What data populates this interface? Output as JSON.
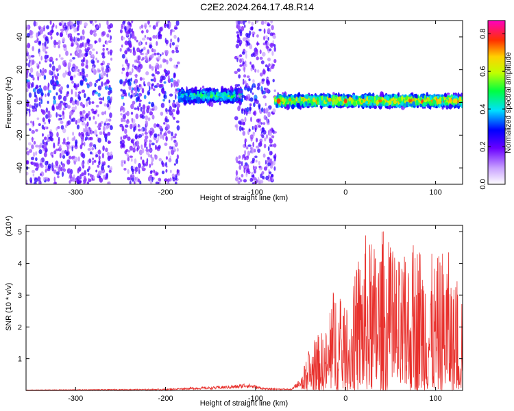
{
  "title": "C2E2.2024.264.17.48.R14",
  "chart_data": [
    {
      "type": "heatmap",
      "xlabel": "Height of straight line (km)",
      "ylabel": "Frequency (Hz)",
      "xlim": [
        -355,
        130
      ],
      "ylim": [
        -50,
        50
      ],
      "xticks": [
        -300,
        -200,
        -100,
        0,
        100
      ],
      "yticks": [
        -40,
        -20,
        0,
        20,
        40
      ],
      "colorbar": {
        "label": "Normalized spectral amplitude",
        "range": [
          0.0,
          0.87
        ],
        "ticks": [
          0.0,
          0.2,
          0.4,
          0.6,
          0.8
        ]
      },
      "bands": [
        {
          "x": [
            -355,
            -260
          ],
          "spread_hz": 50,
          "center_hz": 8,
          "intensity": 0.25
        },
        {
          "x": [
            -250,
            -185
          ],
          "spread_hz": 50,
          "center_hz": 6,
          "intensity": 0.2
        },
        {
          "x": [
            -185,
            -115
          ],
          "spread_hz": 6,
          "center_hz": 4,
          "intensity": 0.45
        },
        {
          "x": [
            -122,
            -78
          ],
          "spread_hz": 50,
          "center_hz": 3,
          "intensity": 0.25
        },
        {
          "x": [
            -78,
            130
          ],
          "spread_hz": 5,
          "center_hz": 1,
          "intensity": 0.7
        }
      ]
    },
    {
      "type": "line",
      "xlabel": "Height of straight line (km)",
      "ylabel": "SNR (10 * v/v)",
      "scale_label": "(x10⁴)",
      "xlim": [
        -355,
        130
      ],
      "ylim": [
        0,
        5.2
      ],
      "xticks": [
        -300,
        -200,
        -100,
        0,
        100
      ],
      "yticks": [
        1,
        2,
        3,
        4,
        5
      ],
      "color": "#e8302c",
      "envelope": [
        {
          "x": -355,
          "y": 0.02
        },
        {
          "x": -250,
          "y": 0.04
        },
        {
          "x": -200,
          "y": 0.05
        },
        {
          "x": -170,
          "y": 0.1
        },
        {
          "x": -150,
          "y": 0.12
        },
        {
          "x": -120,
          "y": 0.18
        },
        {
          "x": -110,
          "y": 0.25
        },
        {
          "x": -90,
          "y": 0.08
        },
        {
          "x": -60,
          "y": 0.05
        },
        {
          "x": -50,
          "y": 0.4
        },
        {
          "x": -40,
          "y": 1.4
        },
        {
          "x": -30,
          "y": 1.8
        },
        {
          "x": -20,
          "y": 2.0
        },
        {
          "x": -12,
          "y": 3.6
        },
        {
          "x": -5,
          "y": 2.9
        },
        {
          "x": 0,
          "y": 2.5
        },
        {
          "x": 15,
          "y": 4.2
        },
        {
          "x": 20,
          "y": 5.1
        },
        {
          "x": 30,
          "y": 4.6
        },
        {
          "x": 42,
          "y": 5.2
        },
        {
          "x": 55,
          "y": 4.2
        },
        {
          "x": 65,
          "y": 4.2
        },
        {
          "x": 80,
          "y": 4.9
        },
        {
          "x": 90,
          "y": 4.6
        },
        {
          "x": 100,
          "y": 4.1
        },
        {
          "x": 112,
          "y": 4.8
        },
        {
          "x": 120,
          "y": 3.4
        },
        {
          "x": 130,
          "y": 3.6
        }
      ]
    }
  ]
}
